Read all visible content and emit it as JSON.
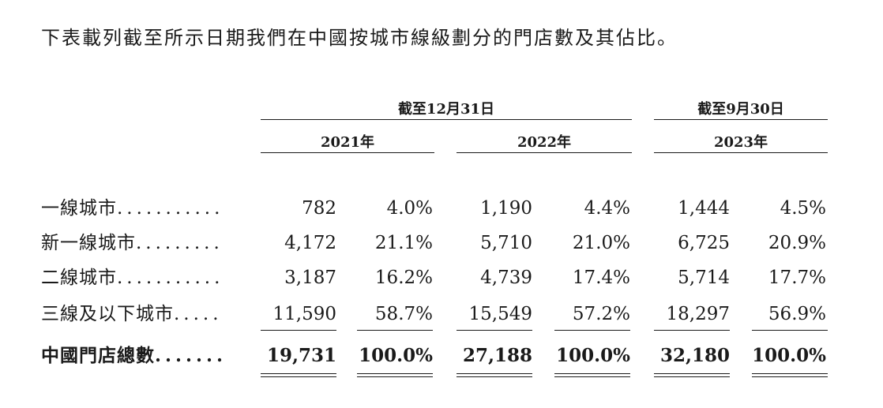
{
  "intro": "下表載列截至所示日期我們在中國按城市線級劃分的門店數及其佔比。",
  "header": {
    "group_dec31": "截至12月31日",
    "group_sep30": "截至9月30日",
    "years": [
      "2021年",
      "2022年",
      "2023年"
    ]
  },
  "rows": [
    {
      "label": "一線城市",
      "dots": "...........",
      "v2021": "782",
      "p2021": "4.0%",
      "v2022": "1,190",
      "p2022": "4.4%",
      "v2023": "1,444",
      "p2023": "4.5%"
    },
    {
      "label": "新一線城市",
      "dots": ".........",
      "v2021": "4,172",
      "p2021": "21.1%",
      "v2022": "5,710",
      "p2022": "21.0%",
      "v2023": "6,725",
      "p2023": "20.9%"
    },
    {
      "label": "二線城市",
      "dots": "...........",
      "v2021": "3,187",
      "p2021": "16.2%",
      "v2022": "4,739",
      "p2022": "17.4%",
      "v2023": "5,714",
      "p2023": "17.7%"
    },
    {
      "label": "三線及以下城市",
      "dots": ".....",
      "v2021": "11,590",
      "p2021": "58.7%",
      "v2022": "15,549",
      "p2022": "57.2%",
      "v2023": "18,297",
      "p2023": "56.9%"
    }
  ],
  "total": {
    "label": "中國門店總數",
    "dots": ".......",
    "v2021": "19,731",
    "p2021": "100.0%",
    "v2022": "27,188",
    "p2022": "100.0%",
    "v2023": "32,180",
    "p2023": "100.0%"
  }
}
